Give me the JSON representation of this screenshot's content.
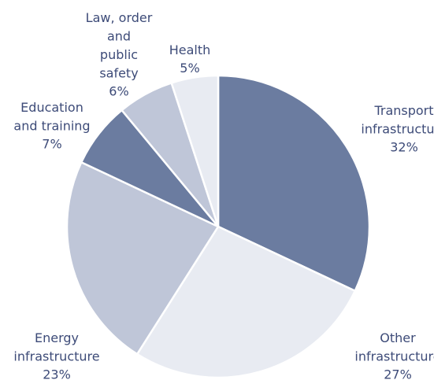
{
  "chart_data": {
    "type": "pie",
    "categories": [
      "Transport infrastructure",
      "Other infrastructure",
      "Energy infrastructure",
      "Education and training",
      "Law, order and public safety",
      "Health"
    ],
    "values": [
      32,
      27,
      23,
      7,
      6,
      5
    ],
    "value_labels": [
      "32%",
      "27%",
      "23%",
      "7%",
      "6%",
      "5%"
    ],
    "colors": [
      "#6b7ca0",
      "#e8ebf2",
      "#bfc6d8",
      "#6b7ca0",
      "#bfc6d8",
      "#e8ebf2"
    ]
  }
}
